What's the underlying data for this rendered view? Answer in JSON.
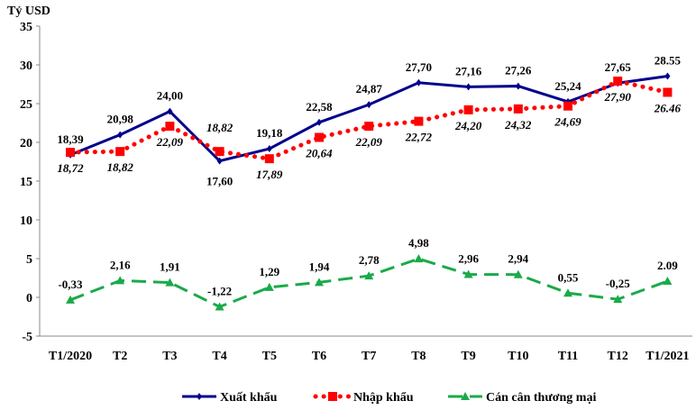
{
  "chart_data": {
    "type": "line",
    "ylabel": "Tỷ USD",
    "ylim": [
      -5,
      35
    ],
    "yticks": [
      -5,
      0,
      5,
      10,
      15,
      20,
      25,
      30,
      35
    ],
    "grid": false,
    "legend_placement": "bottom",
    "categories": [
      "T1/2020",
      "T2",
      "T3",
      "T4",
      "T5",
      "T6",
      "T7",
      "T8",
      "T9",
      "T10",
      "T11",
      "T12",
      "T1/2021"
    ],
    "series": [
      {
        "name": "Xuất khẩu",
        "color": "#00008B",
        "values": [
          18.39,
          20.98,
          24.0,
          17.6,
          19.18,
          22.58,
          24.87,
          27.7,
          27.16,
          27.26,
          25.24,
          27.65,
          28.55
        ],
        "labels": [
          "18,39",
          "20,98",
          "24,00",
          "17,60",
          "19,18",
          "22,58",
          "24,87",
          "27,70",
          "27,16",
          "27,26",
          "25,24",
          "27,65",
          "28.55"
        ]
      },
      {
        "name": "Nhập khẩu",
        "color": "#FF0000",
        "values": [
          18.72,
          18.82,
          22.09,
          18.82,
          17.89,
          20.64,
          22.09,
          22.72,
          24.2,
          24.32,
          24.69,
          27.9,
          26.46
        ],
        "labels": [
          "18,72",
          "18,82",
          "22,09",
          "18,82",
          "17,89",
          "20,64",
          "22,09",
          "22,72",
          "24,20",
          "24,32",
          "24,69",
          "27,90",
          "26.46"
        ]
      },
      {
        "name": "Cán cân thương mại",
        "color": "#1AAA4A",
        "values": [
          -0.33,
          2.16,
          1.91,
          -1.22,
          1.29,
          1.94,
          2.78,
          4.98,
          2.96,
          2.94,
          0.55,
          -0.25,
          2.09
        ],
        "labels": [
          "-0,33",
          "2,16",
          "1,91",
          "-1,22",
          "1,29",
          "1,94",
          "2,78",
          "4,98",
          "2,96",
          "2,94",
          "0,55",
          "-0,25",
          "2.09"
        ]
      }
    ]
  }
}
